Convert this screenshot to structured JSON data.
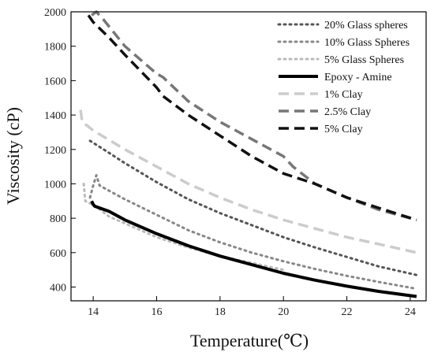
{
  "chart_data": {
    "type": "line",
    "title": "",
    "xlabel": "Temperature(℃)",
    "ylabel": "Viscosity (cP)",
    "xlim": [
      13.3,
      24.5
    ],
    "ylim": [
      320,
      2000
    ],
    "x_ticks": [
      14,
      16,
      18,
      20,
      22,
      24
    ],
    "y_ticks": [
      400,
      600,
      800,
      1000,
      1200,
      1400,
      1600,
      1800,
      2000
    ],
    "grid": false,
    "legend_position": "top-right",
    "series": [
      {
        "name": "20% Glass spheres",
        "color": "#555555",
        "dash": "dotted",
        "x": [
          13.9,
          14.5,
          15,
          16,
          17,
          18,
          19,
          20,
          21,
          22,
          23,
          24.2
        ],
        "y": [
          1250,
          1180,
          1120,
          1010,
          910,
          830,
          760,
          690,
          630,
          575,
          520,
          470
        ]
      },
      {
        "name": "10% Glass Spheres",
        "color": "#888888",
        "dash": "dotted",
        "x": [
          13.9,
          14.0,
          14.1,
          14.2,
          14.5,
          15,
          16,
          17,
          18,
          19,
          20,
          21,
          22,
          23,
          24.2
        ],
        "y": [
          920,
          990,
          1050,
          990,
          960,
          910,
          820,
          730,
          660,
          600,
          550,
          505,
          465,
          430,
          390
        ]
      },
      {
        "name": "5% Glass Spheres",
        "color": "#bbbbbb",
        "dash": "dotted",
        "x": [
          13.7,
          13.75,
          13.85,
          14.0,
          14.5,
          15,
          16,
          17,
          18,
          19,
          20
        ],
        "y": [
          1000,
          900,
          890,
          880,
          810,
          770,
          690,
          630,
          580,
          540,
          500
        ]
      },
      {
        "name": "Epoxy - Amine",
        "color": "#000000",
        "dash": "solid",
        "x": [
          13.95,
          14.0,
          14.05,
          14.5,
          15,
          16,
          17,
          18,
          19,
          20,
          21,
          22,
          23,
          24.2
        ],
        "y": [
          900,
          880,
          870,
          840,
          790,
          710,
          640,
          580,
          530,
          480,
          440,
          405,
          375,
          345
        ]
      },
      {
        "name": "1% Clay",
        "color": "#cccccc",
        "dash": "dashed",
        "x": [
          13.6,
          13.65,
          13.8,
          14,
          15,
          16,
          17,
          18,
          19,
          20,
          21,
          22,
          23,
          24.2
        ],
        "y": [
          1430,
          1360,
          1340,
          1310,
          1200,
          1100,
          1000,
          920,
          850,
          790,
          740,
          690,
          650,
          600
        ]
      },
      {
        "name": "2.5% Clay",
        "color": "#777777",
        "dash": "dashed",
        "x": [
          13.95,
          14.1,
          14.3,
          15,
          16,
          16.2,
          17,
          18,
          19,
          20,
          20.3,
          21,
          22,
          23,
          24.2
        ],
        "y": [
          1980,
          2000,
          1960,
          1800,
          1640,
          1620,
          1480,
          1360,
          1260,
          1160,
          1100,
          1000,
          920,
          850,
          790
        ]
      },
      {
        "name": "5% Clay",
        "color": "#111111",
        "dash": "dashed",
        "x": [
          13.85,
          14.0,
          14.5,
          15,
          16,
          16.2,
          17,
          18,
          19,
          20,
          21,
          22,
          23,
          24.2
        ],
        "y": [
          1980,
          1940,
          1850,
          1750,
          1560,
          1510,
          1400,
          1280,
          1160,
          1060,
          1000,
          920,
          860,
          790
        ]
      }
    ]
  }
}
